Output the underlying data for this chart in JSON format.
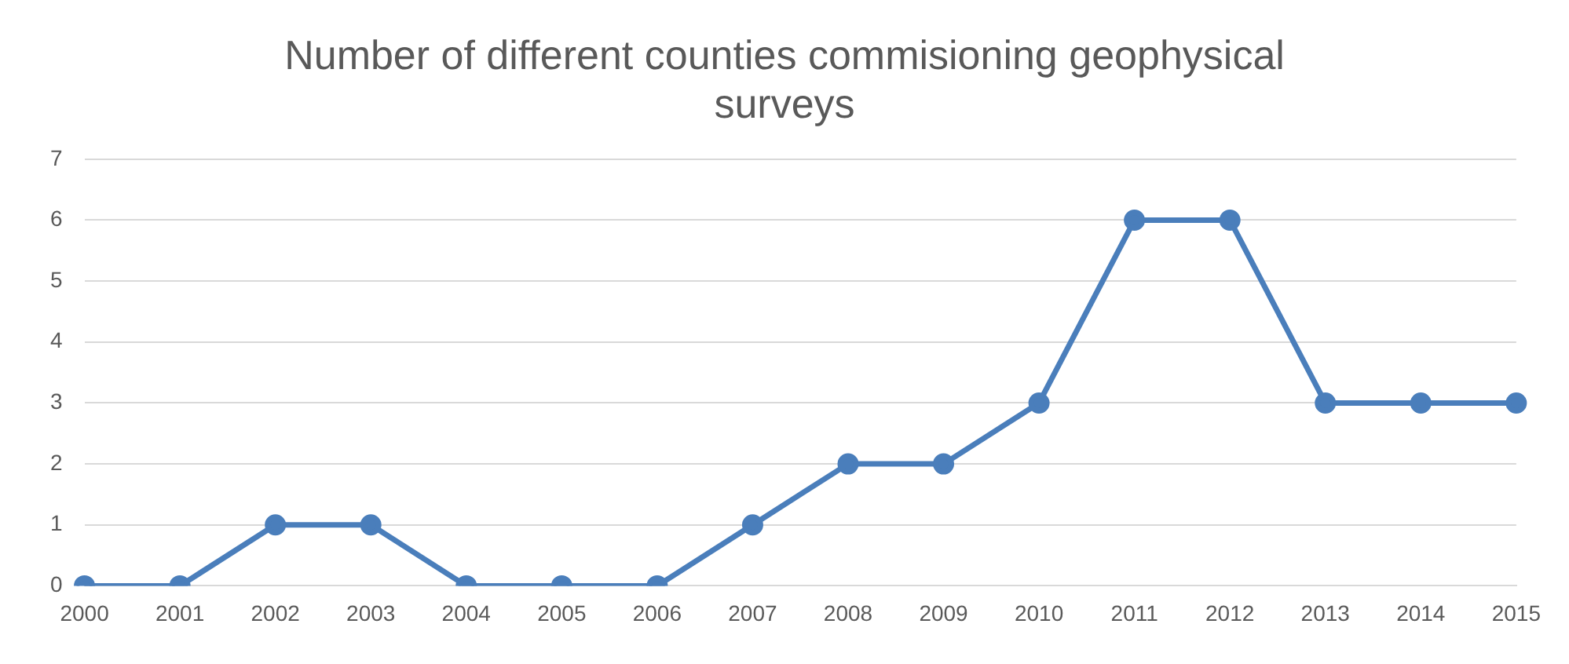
{
  "chart_data": {
    "type": "line",
    "title": "Number of different counties commisioning geophysical surveys",
    "categories": [
      "2000",
      "2001",
      "2002",
      "2003",
      "2004",
      "2005",
      "2006",
      "2007",
      "2008",
      "2009",
      "2010",
      "2011",
      "2012",
      "2013",
      "2014",
      "2015"
    ],
    "series": [
      {
        "color": "#4a7ebb",
        "values": [
          0,
          0,
          1,
          1,
          0,
          0,
          0,
          1,
          2,
          2,
          3,
          6,
          6,
          3,
          3,
          3
        ]
      }
    ],
    "ylim": [
      0,
      7
    ],
    "yticks": [
      0,
      1,
      2,
      3,
      4,
      5,
      6,
      7
    ],
    "grid": "y",
    "legend": false,
    "marker": "circle",
    "line_style": "solid"
  }
}
